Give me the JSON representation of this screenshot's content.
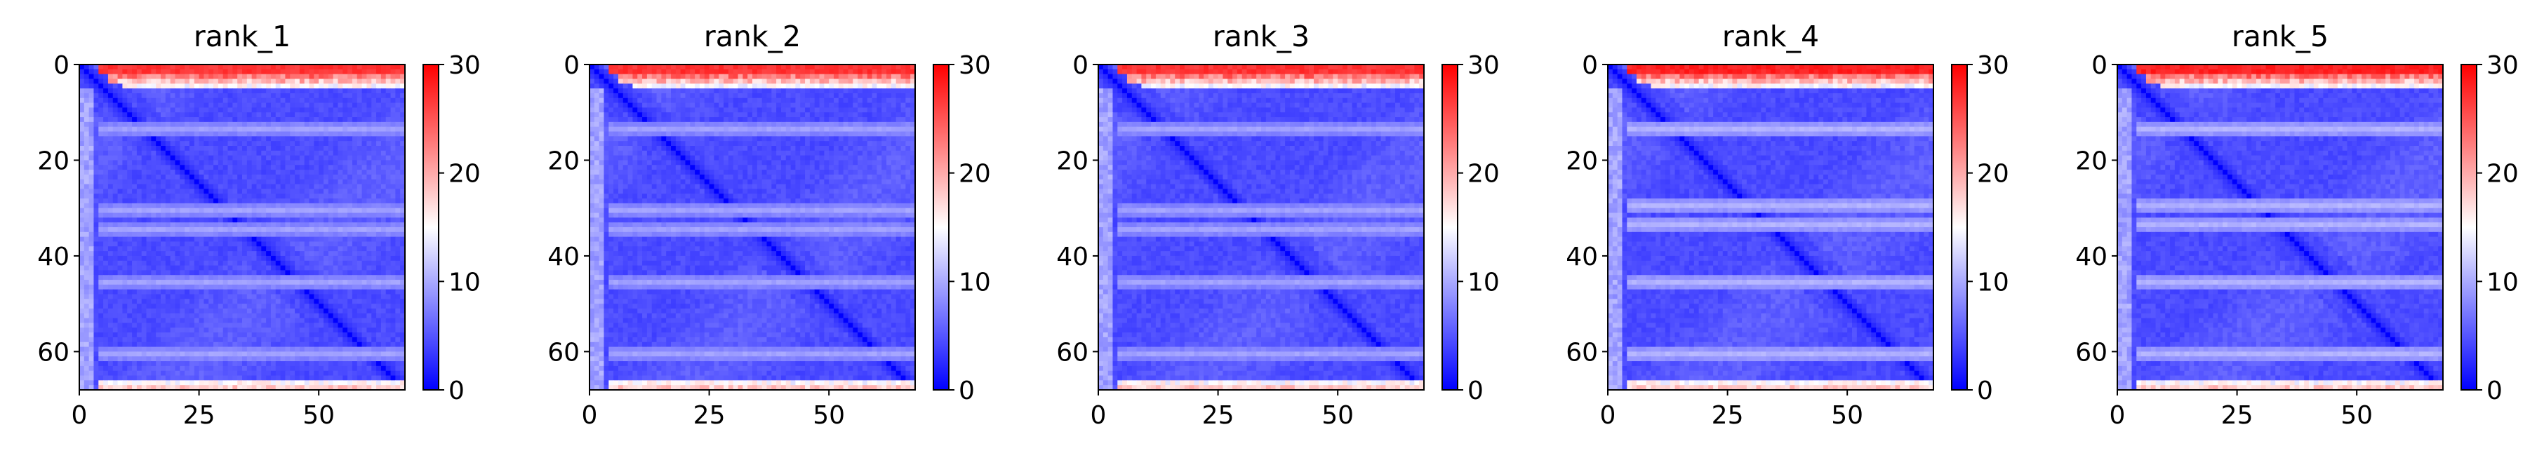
{
  "chart_data": {
    "type": "heatmap",
    "colormap": "bwr",
    "colorbar": {
      "min": 0,
      "max": 30,
      "ticks": [
        "0",
        "10",
        "20",
        "30"
      ]
    },
    "matrix_size": 68,
    "x_ticks": [
      "0",
      "25",
      "50"
    ],
    "y_ticks": [
      "0",
      "20",
      "40",
      "60"
    ],
    "panels": [
      {
        "title": "rank_1",
        "top_rows_value": 28,
        "bottom_rows_value": 17,
        "band_rows": [
          13,
          30,
          34,
          45,
          60
        ],
        "band_value": 9
      },
      {
        "title": "rank_2",
        "top_rows_value": 28,
        "bottom_rows_value": 17,
        "band_rows": [
          13,
          30,
          34,
          45,
          60
        ],
        "band_value": 9
      },
      {
        "title": "rank_3",
        "top_rows_value": 28,
        "bottom_rows_value": 17,
        "band_rows": [
          13,
          30,
          34,
          45,
          60
        ],
        "band_value": 9
      },
      {
        "title": "rank_4",
        "top_rows_value": 29,
        "bottom_rows_value": 17,
        "band_rows": [
          13,
          29,
          33,
          45,
          60
        ],
        "band_value": 10
      },
      {
        "title": "rank_5",
        "top_rows_value": 29,
        "bottom_rows_value": 17,
        "band_rows": [
          13,
          29,
          33,
          45,
          60
        ],
        "band_value": 10
      }
    ]
  }
}
